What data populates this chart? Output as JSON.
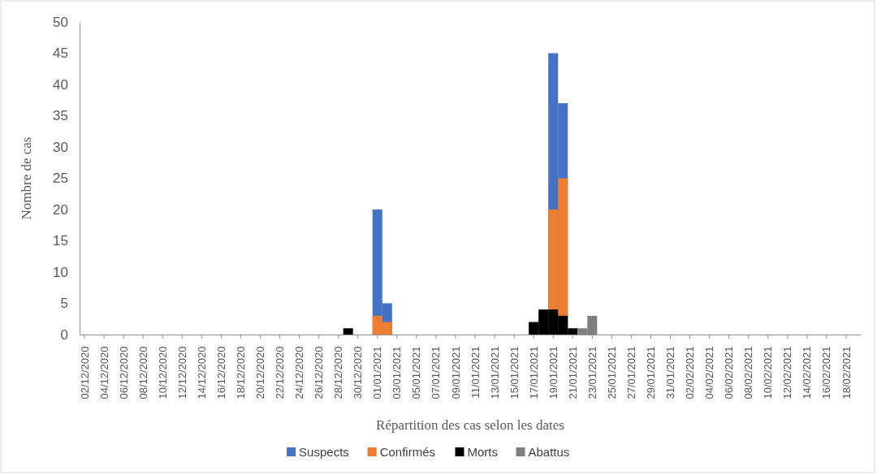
{
  "chart_data": {
    "type": "bar",
    "xlabel": "Répartition des cas selon les dates",
    "ylabel": "Nombre de cas",
    "categories": [
      "02/12/2020",
      null,
      "04/12/2020",
      null,
      "06/12/2020",
      null,
      "08/12/2020",
      null,
      "10/12/2020",
      null,
      "12/12/2020",
      null,
      "14/12/2020",
      null,
      "16/12/2020",
      null,
      "18/12/2020",
      null,
      "20/12/2020",
      null,
      "22/12/2020",
      null,
      "24/12/2020",
      null,
      "26/12/2020",
      null,
      "28/12/2020",
      null,
      "30/12/2020",
      null,
      "01/01/2021",
      null,
      "03/01/2021",
      null,
      "05/01/2021",
      null,
      "07/01/2021",
      null,
      "09/01/2021",
      null,
      "11/01/2021",
      null,
      "13/01/2021",
      null,
      "15/01/2021",
      null,
      "17/01/2021",
      null,
      "19/01/2021",
      null,
      "21/01/2021",
      null,
      "23/01/2021",
      null,
      "25/01/2021",
      null,
      "27/01/2021",
      null,
      "29/01/2021",
      null,
      "31/01/2021",
      null,
      "02/02/2021",
      null,
      "04/02/2021",
      null,
      "06/02/2021",
      null,
      "08/02/2021",
      null,
      "10/02/2021",
      null,
      "12/02/2021",
      null,
      "14/02/2021",
      null,
      "16/02/2021",
      null,
      "18/02/2021",
      null
    ],
    "series": [
      {
        "name": "Suspects",
        "color": "#4472c4",
        "values": [
          0,
          0,
          0,
          0,
          0,
          0,
          0,
          0,
          0,
          0,
          0,
          0,
          0,
          0,
          0,
          0,
          0,
          0,
          0,
          0,
          0,
          0,
          0,
          0,
          0,
          0,
          0,
          0,
          0,
          0,
          20,
          5,
          0,
          0,
          0,
          0,
          0,
          0,
          0,
          0,
          0,
          0,
          0,
          0,
          0,
          0,
          0,
          0,
          45,
          37,
          0,
          0,
          0,
          0,
          0,
          0,
          0,
          0,
          0,
          0,
          0,
          0,
          0,
          0,
          0,
          0,
          0,
          0,
          0,
          0,
          0,
          0,
          0,
          0,
          0,
          0,
          0,
          0,
          0,
          0
        ]
      },
      {
        "name": "Confirmés",
        "color": "#ed7d31",
        "values": [
          0,
          0,
          0,
          0,
          0,
          0,
          0,
          0,
          0,
          0,
          0,
          0,
          0,
          0,
          0,
          0,
          0,
          0,
          0,
          0,
          0,
          0,
          0,
          0,
          0,
          0,
          0,
          0,
          0,
          0,
          3,
          2,
          0,
          0,
          0,
          0,
          0,
          0,
          0,
          0,
          0,
          0,
          0,
          0,
          0,
          0,
          0,
          0,
          20,
          25,
          0,
          0,
          0,
          0,
          0,
          0,
          0,
          0,
          0,
          0,
          0,
          0,
          0,
          0,
          0,
          0,
          0,
          0,
          0,
          0,
          0,
          0,
          0,
          0,
          0,
          0,
          0,
          0,
          0,
          0
        ]
      },
      {
        "name": "Morts",
        "color": "#000000",
        "values": [
          0,
          0,
          0,
          0,
          0,
          0,
          0,
          0,
          0,
          0,
          0,
          0,
          0,
          0,
          0,
          0,
          0,
          0,
          0,
          0,
          0,
          0,
          0,
          0,
          0,
          0,
          0,
          1,
          0,
          0,
          0,
          0,
          0,
          0,
          0,
          0,
          0,
          0,
          0,
          0,
          0,
          0,
          0,
          0,
          0,
          0,
          2,
          4,
          4,
          3,
          1,
          0,
          0,
          0,
          0,
          0,
          0,
          0,
          0,
          0,
          0,
          0,
          0,
          0,
          0,
          0,
          0,
          0,
          0,
          0,
          0,
          0,
          0,
          0,
          0,
          0,
          0,
          0,
          0,
          0
        ]
      },
      {
        "name": "Abattus",
        "color": "#7f7f7f",
        "values": [
          0,
          0,
          0,
          0,
          0,
          0,
          0,
          0,
          0,
          0,
          0,
          0,
          0,
          0,
          0,
          0,
          0,
          0,
          0,
          0,
          0,
          0,
          0,
          0,
          0,
          0,
          0,
          0,
          0,
          0,
          0,
          0,
          0,
          0,
          0,
          0,
          0,
          0,
          0,
          0,
          0,
          0,
          0,
          0,
          0,
          0,
          0,
          0,
          0,
          0,
          0,
          1,
          3,
          0,
          0,
          0,
          0,
          0,
          0,
          0,
          0,
          0,
          0,
          0,
          0,
          0,
          0,
          0,
          0,
          0,
          0,
          0,
          0,
          0,
          0,
          0,
          0,
          0,
          0,
          0
        ]
      }
    ],
    "ylim": [
      0,
      50
    ],
    "yticks": [
      0,
      5,
      10,
      15,
      20,
      25,
      30,
      35,
      40,
      45,
      50
    ],
    "legend": "bottom"
  }
}
